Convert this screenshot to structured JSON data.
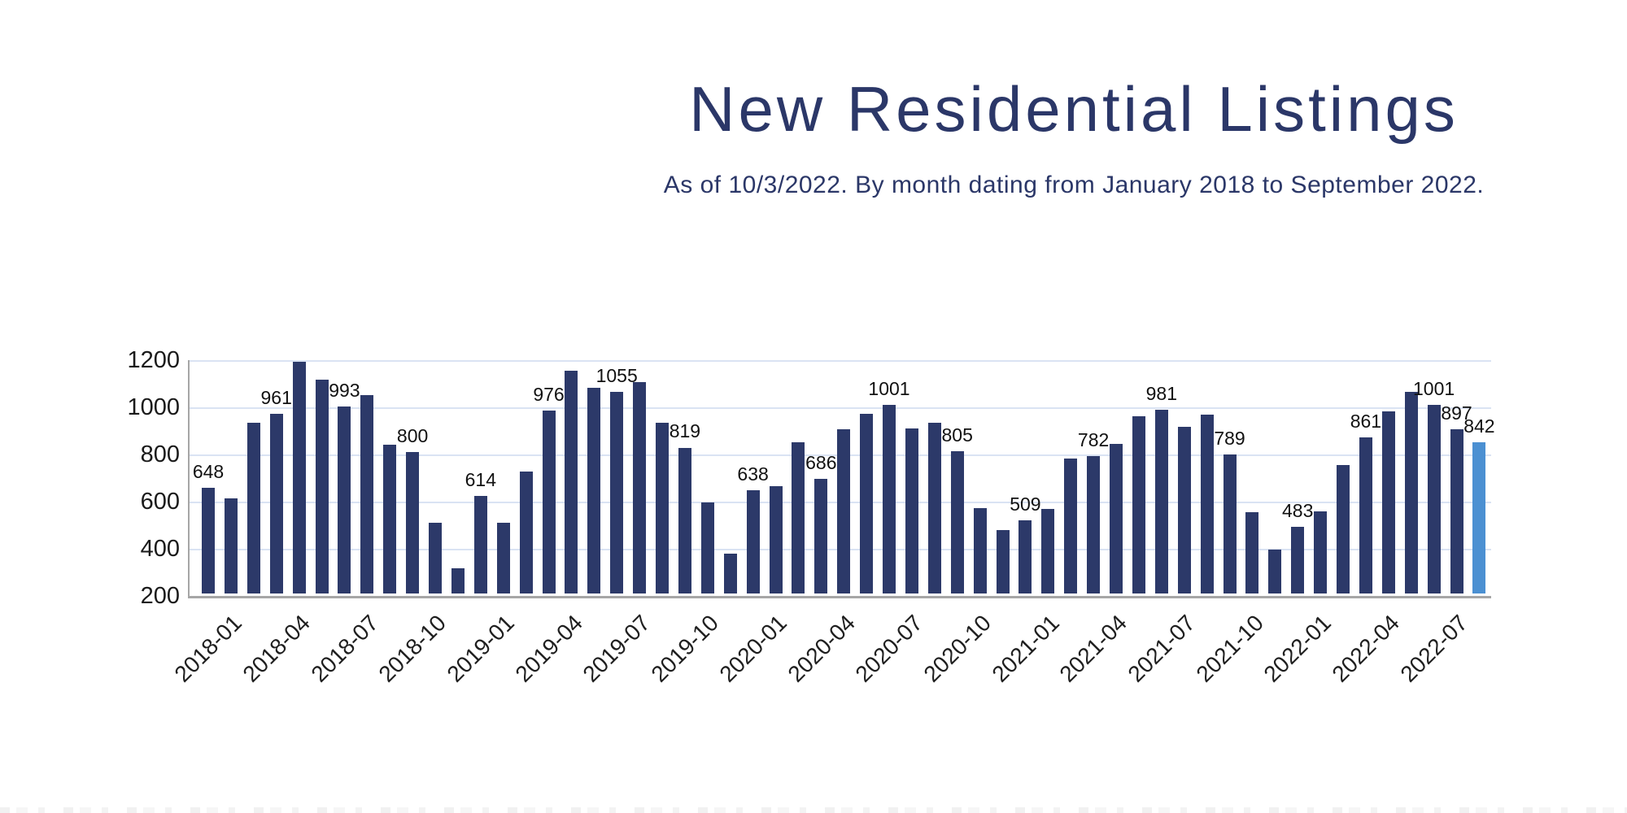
{
  "header": {
    "title": "New Residential Listings",
    "subtitle": "As of 10/3/2022. By month dating from January 2018 to September 2022."
  },
  "chart_data": {
    "type": "bar",
    "title": "New Residential Listings",
    "subtitle": "As of 10/3/2022. By month dating from January 2018 to September 2022.",
    "xlabel": "",
    "ylabel": "",
    "ylim": [
      200,
      1200
    ],
    "y_ticks": [
      1200,
      1000,
      800,
      600,
      400,
      200
    ],
    "grid": true,
    "legend": "none",
    "bar_color": "#2c3969",
    "highlight_color": "#4b90d2",
    "highlight_index": 56,
    "categories": [
      "2018-01",
      "2018-02",
      "2018-03",
      "2018-04",
      "2018-05",
      "2018-06",
      "2018-07",
      "2018-08",
      "2018-09",
      "2018-10",
      "2018-11",
      "2018-12",
      "2019-01",
      "2019-02",
      "2019-03",
      "2019-04",
      "2019-05",
      "2019-06",
      "2019-07",
      "2019-08",
      "2019-09",
      "2019-10",
      "2019-11",
      "2019-12",
      "2020-01",
      "2020-02",
      "2020-03",
      "2020-04",
      "2020-05",
      "2020-06",
      "2020-07",
      "2020-08",
      "2020-09",
      "2020-10",
      "2020-11",
      "2020-12",
      "2021-01",
      "2021-02",
      "2021-03",
      "2021-04",
      "2021-05",
      "2021-06",
      "2021-07",
      "2021-08",
      "2021-09",
      "2021-10",
      "2021-11",
      "2021-12",
      "2022-01",
      "2022-02",
      "2022-03",
      "2022-04",
      "2022-05",
      "2022-06",
      "2022-07",
      "2022-08",
      "2022-09"
    ],
    "values": [
      648,
      605,
      925,
      961,
      1183,
      1107,
      993,
      1042,
      831,
      800,
      500,
      306,
      614,
      501,
      717,
      976,
      1146,
      1071,
      1055,
      1096,
      923,
      819,
      585,
      370,
      638,
      655,
      843,
      686,
      896,
      961,
      1001,
      901,
      924,
      805,
      561,
      468,
      509,
      560,
      774,
      782,
      833,
      951,
      981,
      908,
      958,
      789,
      545,
      385,
      483,
      549,
      744,
      861,
      971,
      1056,
      1001,
      897,
      842
    ],
    "callouts": [
      {
        "index": 0,
        "text": "648"
      },
      {
        "index": 3,
        "text": "961"
      },
      {
        "index": 6,
        "text": "993"
      },
      {
        "index": 9,
        "text": "800"
      },
      {
        "index": 12,
        "text": "614"
      },
      {
        "index": 15,
        "text": "976"
      },
      {
        "index": 18,
        "text": "1055"
      },
      {
        "index": 21,
        "text": "819"
      },
      {
        "index": 24,
        "text": "638"
      },
      {
        "index": 27,
        "text": "686"
      },
      {
        "index": 30,
        "text": "1001"
      },
      {
        "index": 33,
        "text": "805"
      },
      {
        "index": 36,
        "text": "509"
      },
      {
        "index": 39,
        "text": "782"
      },
      {
        "index": 42,
        "text": "981"
      },
      {
        "index": 45,
        "text": "789"
      },
      {
        "index": 48,
        "text": "483"
      },
      {
        "index": 51,
        "text": "861"
      },
      {
        "index": 54,
        "text": "1001"
      },
      {
        "index": 55,
        "text": "897"
      },
      {
        "index": 56,
        "text": "842"
      }
    ],
    "x_ticks": [
      {
        "index": 0,
        "label": "2018-01"
      },
      {
        "index": 3,
        "label": "2018-04"
      },
      {
        "index": 6,
        "label": "2018-07"
      },
      {
        "index": 9,
        "label": "2018-10"
      },
      {
        "index": 12,
        "label": "2019-01"
      },
      {
        "index": 15,
        "label": "2019-04"
      },
      {
        "index": 18,
        "label": "2019-07"
      },
      {
        "index": 21,
        "label": "2019-10"
      },
      {
        "index": 24,
        "label": "2020-01"
      },
      {
        "index": 27,
        "label": "2020-04"
      },
      {
        "index": 30,
        "label": "2020-07"
      },
      {
        "index": 33,
        "label": "2020-10"
      },
      {
        "index": 36,
        "label": "2021-01"
      },
      {
        "index": 39,
        "label": "2021-04"
      },
      {
        "index": 42,
        "label": "2021-07"
      },
      {
        "index": 45,
        "label": "2021-10"
      },
      {
        "index": 48,
        "label": "2022-01"
      },
      {
        "index": 51,
        "label": "2022-04"
      },
      {
        "index": 54,
        "label": "2022-07"
      }
    ]
  }
}
